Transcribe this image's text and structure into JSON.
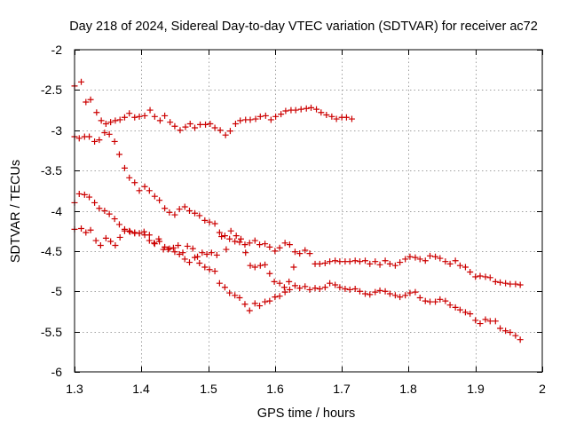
{
  "chart_data": {
    "type": "scatter",
    "title": "Day 218 of 2024, Sidereal Day-to-day VTEC variation (SDTVAR) for receiver ac72",
    "xlabel": "GPS time / hours",
    "ylabel": "SDTVAR / TECUs",
    "xlim": [
      1.3,
      2.0
    ],
    "ylim": [
      -6,
      -2
    ],
    "x_ticks": [
      1.3,
      1.4,
      1.5,
      1.6,
      1.7,
      1.8,
      1.9,
      2.0
    ],
    "x_tick_labels": [
      "1.3",
      "1.4",
      "1.5",
      "1.6",
      "1.7",
      "1.8",
      "1.9",
      "2"
    ],
    "y_ticks": [
      -2,
      -2.5,
      -3,
      -3.5,
      -4,
      -4.5,
      -5,
      -5.5,
      -6
    ],
    "y_tick_labels": [
      "-2",
      "-2.5",
      "-3",
      "-3.5",
      "-4",
      "-4.5",
      "-5",
      "-5.5",
      "-6"
    ],
    "grid": true,
    "marker": "+",
    "color": "#cc0000",
    "series": [
      {
        "name": "series-upper",
        "x": [
          1.3,
          1.31,
          1.317,
          1.324,
          1.333,
          1.34,
          1.347,
          1.354,
          1.361,
          1.368,
          1.375,
          1.382,
          1.39,
          1.397,
          1.405,
          1.413,
          1.42,
          1.428,
          1.435,
          1.443,
          1.45,
          1.458,
          1.466,
          1.473,
          1.48,
          1.488,
          1.496,
          1.503,
          1.51,
          1.518,
          1.526,
          1.533,
          1.541,
          1.548,
          1.556,
          1.563,
          1.571,
          1.578,
          1.586,
          1.594,
          1.601,
          1.609,
          1.616,
          1.624,
          1.631,
          1.639,
          1.647,
          1.654,
          1.662,
          1.669,
          1.677,
          1.685,
          1.692,
          1.7,
          1.707,
          1.715
        ],
        "y": [
          -2.45,
          -2.4,
          -2.65,
          -2.62,
          -2.78,
          -2.88,
          -2.92,
          -2.9,
          -2.88,
          -2.87,
          -2.84,
          -2.79,
          -2.84,
          -2.83,
          -2.82,
          -2.75,
          -2.83,
          -2.88,
          -2.82,
          -2.9,
          -2.95,
          -3.0,
          -2.96,
          -2.92,
          -2.97,
          -2.93,
          -2.93,
          -2.92,
          -2.97,
          -3.0,
          -3.06,
          -3.01,
          -2.92,
          -2.88,
          -2.87,
          -2.87,
          -2.86,
          -2.83,
          -2.82,
          -2.87,
          -2.83,
          -2.8,
          -2.76,
          -2.75,
          -2.75,
          -2.74,
          -2.73,
          -2.72,
          -2.74,
          -2.78,
          -2.81,
          -2.83,
          -2.86,
          -2.84,
          -2.84,
          -2.86
        ]
      },
      {
        "name": "series-descending",
        "x": [
          1.3,
          1.307,
          1.315,
          1.322,
          1.33,
          1.337,
          1.345,
          1.352,
          1.36,
          1.367,
          1.375,
          1.382,
          1.39,
          1.397,
          1.405,
          1.412,
          1.42,
          1.427,
          1.435,
          1.442,
          1.45,
          1.457,
          1.465,
          1.472,
          1.48,
          1.487,
          1.495,
          1.502,
          1.51,
          1.517,
          1.525,
          1.532,
          1.54,
          1.547,
          1.555,
          1.562,
          1.57,
          1.577,
          1.585,
          1.592,
          1.6,
          1.607,
          1.615,
          1.622,
          1.63,
          1.637,
          1.645,
          1.652,
          1.66,
          1.667,
          1.675,
          1.682,
          1.69,
          1.697,
          1.705,
          1.712,
          1.72,
          1.727,
          1.735,
          1.742,
          1.75,
          1.757,
          1.765,
          1.772,
          1.78,
          1.787,
          1.795,
          1.802,
          1.81,
          1.817,
          1.825,
          1.832,
          1.84,
          1.847,
          1.855,
          1.862,
          1.87,
          1.877,
          1.885,
          1.892,
          1.9,
          1.907,
          1.915,
          1.922,
          1.93,
          1.937,
          1.945,
          1.952,
          1.96,
          1.967
        ],
        "y": [
          -3.08,
          -3.1,
          -3.08,
          -3.08,
          -3.14,
          -3.12,
          -3.03,
          -3.05,
          -3.14,
          -3.3,
          -3.47,
          -3.59,
          -3.65,
          -3.75,
          -3.7,
          -3.75,
          -3.82,
          -3.87,
          -3.97,
          -4.02,
          -4.05,
          -3.98,
          -3.95,
          -4.0,
          -4.03,
          -4.06,
          -4.12,
          -4.14,
          -4.16,
          -4.27,
          -4.31,
          -4.35,
          -4.38,
          -4.39,
          -4.42,
          -4.4,
          -4.37,
          -4.42,
          -4.41,
          -4.45,
          -4.5,
          -4.46,
          -4.4,
          -4.42,
          -4.51,
          -4.53,
          -4.49,
          -4.53,
          -4.66,
          -4.66,
          -4.65,
          -4.63,
          -4.62,
          -4.63,
          -4.63,
          -4.63,
          -4.62,
          -4.63,
          -4.62,
          -4.66,
          -4.63,
          -4.67,
          -4.62,
          -4.66,
          -4.68,
          -4.64,
          -4.6,
          -4.57,
          -4.58,
          -4.6,
          -4.62,
          -4.56,
          -4.57,
          -4.59,
          -4.63,
          -4.66,
          -4.62,
          -4.68,
          -4.7,
          -4.76,
          -4.82,
          -4.81,
          -4.82,
          -4.83,
          -4.88,
          -4.89,
          -4.9,
          -4.91,
          -4.91,
          -4.92
        ]
      },
      {
        "name": "series-middle",
        "x": [
          1.3,
          1.307,
          1.315,
          1.322,
          1.33,
          1.337,
          1.345,
          1.352,
          1.36,
          1.367,
          1.375,
          1.382,
          1.39,
          1.397,
          1.405,
          1.412,
          1.42,
          1.427,
          1.435,
          1.442,
          1.45,
          1.457,
          1.465,
          1.472,
          1.48,
          1.487,
          1.495,
          1.502,
          1.51,
          1.517,
          1.525,
          1.532,
          1.54,
          1.547,
          1.555,
          1.562,
          1.57,
          1.577,
          1.585,
          1.592,
          1.6,
          1.607,
          1.615,
          1.622,
          1.63,
          1.637,
          1.645,
          1.652,
          1.66,
          1.667,
          1.675,
          1.682,
          1.69,
          1.697,
          1.705,
          1.712,
          1.72,
          1.727,
          1.735,
          1.742,
          1.75,
          1.757,
          1.765,
          1.772,
          1.78,
          1.787,
          1.795,
          1.802,
          1.81,
          1.817,
          1.825,
          1.832,
          1.84,
          1.847,
          1.855,
          1.862,
          1.87,
          1.877,
          1.885,
          1.892,
          1.9,
          1.907,
          1.915,
          1.922,
          1.93,
          1.937,
          1.945,
          1.952,
          1.96,
          1.967
        ],
        "y": [
          -3.9,
          -3.79,
          -3.8,
          -3.83,
          -3.9,
          -3.97,
          -4.0,
          -4.04,
          -4.1,
          -4.17,
          -4.23,
          -4.25,
          -4.27,
          -4.28,
          -4.3,
          -4.37,
          -4.41,
          -4.38,
          -4.45,
          -4.47,
          -4.51,
          -4.54,
          -4.6,
          -4.64,
          -4.58,
          -4.65,
          -4.7,
          -4.73,
          -4.75,
          -4.9,
          -4.95,
          -5.02,
          -5.05,
          -5.08,
          -5.16,
          -5.24,
          -5.15,
          -5.18,
          -5.13,
          -5.12,
          -5.07,
          -5.06,
          -5.01,
          -4.98,
          -4.93,
          -4.96,
          -4.94,
          -4.98,
          -4.96,
          -4.97,
          -4.95,
          -4.9,
          -4.92,
          -4.95,
          -4.97,
          -4.98,
          -4.97,
          -5.0,
          -5.03,
          -5.04,
          -5.01,
          -4.99,
          -5.0,
          -5.03,
          -5.05,
          -5.07,
          -5.05,
          -5.02,
          -5.01,
          -5.08,
          -5.12,
          -5.13,
          -5.13,
          -5.1,
          -5.12,
          -5.17,
          -5.2,
          -5.23,
          -5.26,
          -5.28,
          -5.36,
          -5.4,
          -5.35,
          -5.37,
          -5.37,
          -5.46,
          -5.49,
          -5.51,
          -5.55,
          -5.6
        ]
      },
      {
        "name": "series-lower",
        "x": [
          1.3,
          1.31,
          1.317,
          1.324,
          1.332,
          1.339,
          1.347,
          1.354,
          1.361,
          1.368,
          1.375,
          1.383,
          1.39,
          1.397,
          1.404,
          1.412,
          1.419,
          1.426,
          1.433,
          1.44,
          1.448,
          1.455,
          1.462,
          1.469,
          1.477,
          1.484,
          1.491,
          1.498,
          1.505,
          1.513,
          1.52,
          1.527,
          1.534,
          1.542,
          1.549,
          1.556,
          1.563,
          1.57,
          1.578,
          1.585,
          1.592,
          1.599,
          1.607,
          1.614,
          1.621,
          1.628
        ],
        "y": [
          -4.23,
          -4.22,
          -4.27,
          -4.24,
          -4.37,
          -4.43,
          -4.34,
          -4.38,
          -4.43,
          -4.33,
          -4.25,
          -4.26,
          -4.28,
          -4.28,
          -4.26,
          -4.3,
          -4.4,
          -4.35,
          -4.48,
          -4.48,
          -4.46,
          -4.43,
          -4.52,
          -4.44,
          -4.47,
          -4.57,
          -4.52,
          -4.54,
          -4.52,
          -4.55,
          -4.32,
          -4.48,
          -4.25,
          -4.31,
          -4.35,
          -4.52,
          -4.68,
          -4.7,
          -4.68,
          -4.67,
          -4.78,
          -4.88,
          -4.9,
          -4.95,
          -4.88,
          -4.7
        ]
      }
    ]
  }
}
